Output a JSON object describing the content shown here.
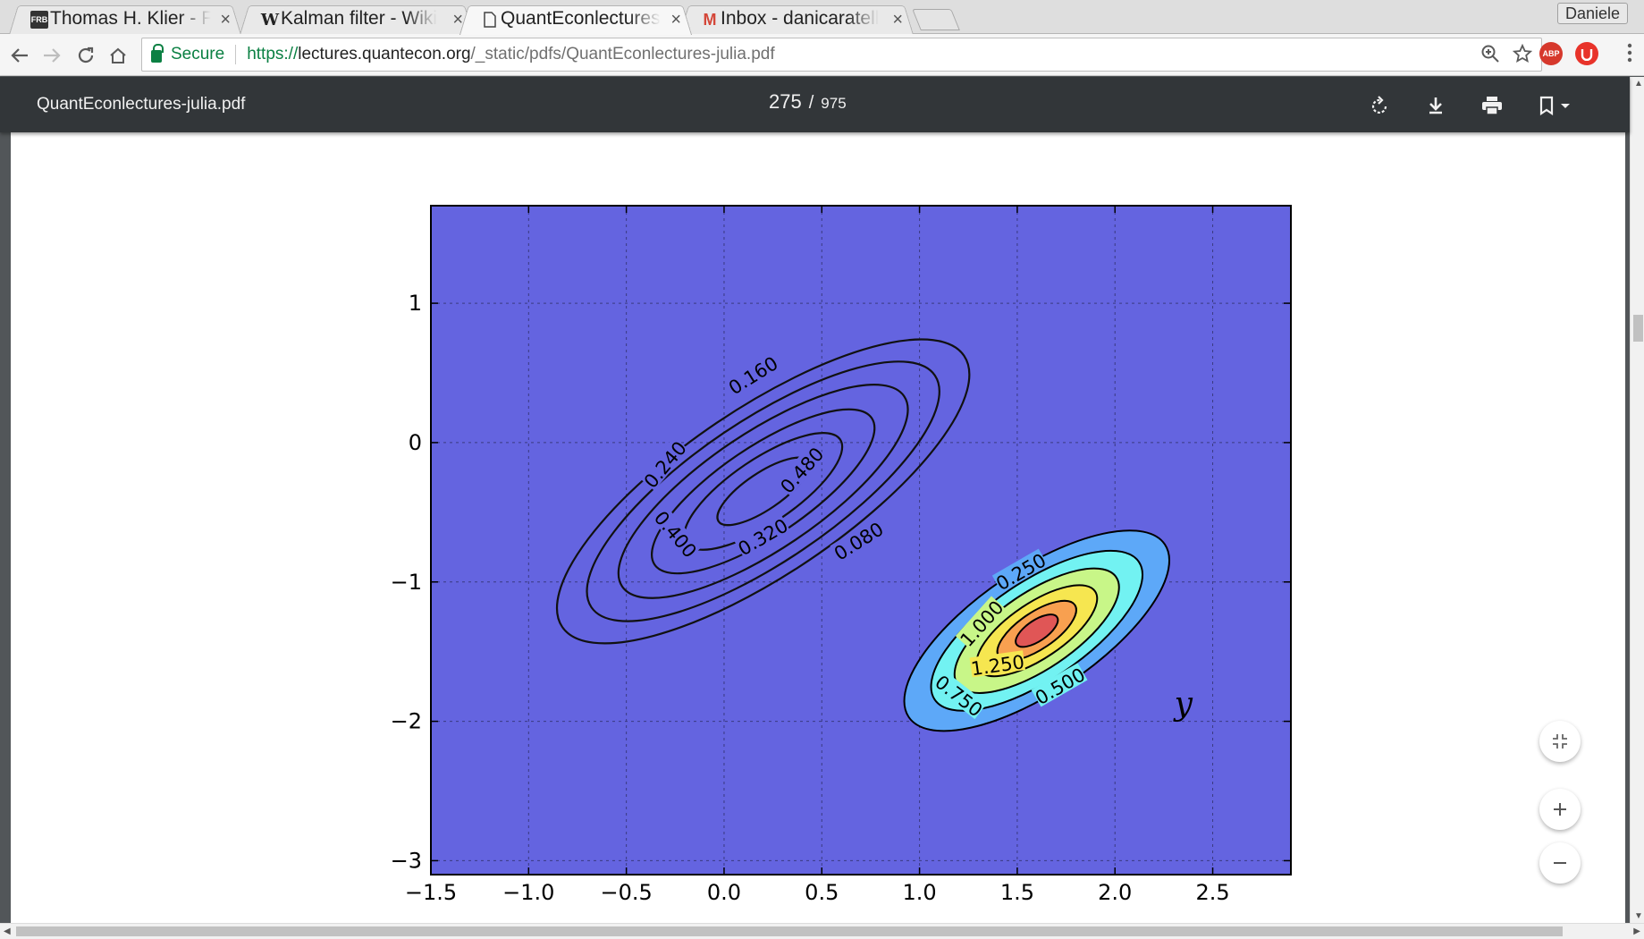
{
  "tabs": [
    {
      "title": "Thomas H. Klier - Fe",
      "favicon": "FRB",
      "active": false
    },
    {
      "title": "Kalman filter - Wiki",
      "favicon": "W",
      "active": false
    },
    {
      "title": "QuantEconlectures",
      "favicon": "page-icon",
      "active": true
    },
    {
      "title": "Inbox - danicaratell",
      "favicon": "M",
      "active": false
    }
  ],
  "profile_name": "Daniele",
  "omnibox": {
    "secure_label": "Secure",
    "url_scheme": "https://",
    "url_host": "lectures.quantecon.org",
    "url_path": "/_static/pdfs/QuantEconlectures-julia.pdf"
  },
  "extensions": {
    "adblock": "ABP"
  },
  "pdf": {
    "filename": "QuantEconlectures-julia.pdf",
    "current_page": "275",
    "page_separator": "/",
    "total_pages": "975"
  },
  "colors": {
    "pdf_toolbar": "#323639",
    "plot_background": "#6464e0",
    "secure_green": "#0b8043"
  },
  "chart_data": {
    "type": "contour",
    "xlim": [
      -1.5,
      2.9
    ],
    "ylim": [
      -3.1,
      1.7
    ],
    "xticks": [
      "−1.5",
      "−1.0",
      "−0.5",
      "0.0",
      "0.5",
      "1.0",
      "1.5",
      "2.0",
      "2.5"
    ],
    "xtick_values": [
      -1.5,
      -1.0,
      -0.5,
      0.0,
      0.5,
      1.0,
      1.5,
      2.0,
      2.5
    ],
    "yticks": [
      "1",
      "0",
      "−1",
      "−2",
      "−3"
    ],
    "ytick_values": [
      1,
      0,
      -1,
      -2,
      -3
    ],
    "grid": true,
    "annotation": "y",
    "series": [
      {
        "name": "",
        "style": "line-contours",
        "center": [
          0.2,
          -0.35
        ],
        "levels": [
          {
            "label": "0.080",
            "rx": 2.48,
            "ry": 0.54
          },
          {
            "label": "0.160",
            "rx": 2.12,
            "ry": 0.46
          },
          {
            "label": "0.240",
            "rx": 1.74,
            "ry": 0.38
          },
          {
            "label": "0.320",
            "rx": 1.34,
            "ry": 0.29
          },
          {
            "label": "0.400",
            "rx": 0.95,
            "ry": 0.21
          },
          {
            "label": "0.480",
            "rx": 0.55,
            "ry": 0.12
          }
        ]
      },
      {
        "name": "",
        "style": "filled-contours",
        "center": [
          1.6,
          -1.35
        ],
        "levels": [
          {
            "label": "0.250",
            "rx": 1.58,
            "ry": 0.4,
            "color": "#5da8f8"
          },
          {
            "label": "0.500",
            "rx": 1.26,
            "ry": 0.32,
            "color": "#72f2f2"
          },
          {
            "label": "0.750",
            "rx": 0.98,
            "ry": 0.25,
            "color": "#c8f688"
          },
          {
            "label": "1.000",
            "rx": 0.72,
            "ry": 0.18,
            "color": "#f6e650"
          },
          {
            "label": "1.250",
            "rx": 0.47,
            "ry": 0.12,
            "color": "#f8a050"
          },
          {
            "label": "",
            "rx": 0.25,
            "ry": 0.068,
            "color": "#e05656"
          }
        ]
      }
    ]
  }
}
